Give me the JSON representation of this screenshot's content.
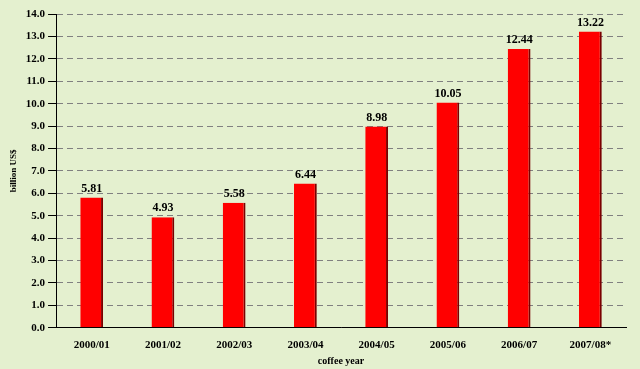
{
  "chart_data": {
    "type": "bar",
    "x_label": "coffee year",
    "y_label": "billion US$",
    "categories": [
      "2000/01",
      "2001/02",
      "2002/03",
      "2003/04",
      "2004/05",
      "2005/06",
      "2006/07",
      "2007/08*"
    ],
    "values": [
      5.81,
      4.93,
      5.58,
      6.44,
      8.98,
      10.05,
      12.44,
      13.22
    ],
    "color": "#ff0000",
    "ylim": [
      0,
      14
    ],
    "yticks": [
      {
        "value": 0,
        "label": "0.0"
      },
      {
        "value": 1,
        "label": "1.0"
      },
      {
        "value": 2,
        "label": "2.0"
      },
      {
        "value": 3,
        "label": "3.0"
      },
      {
        "value": 4,
        "label": "4.0"
      },
      {
        "value": 5,
        "label": "5.0"
      },
      {
        "value": 6,
        "label": "6.0"
      },
      {
        "value": 7,
        "label": "7.0"
      },
      {
        "value": 8,
        "label": "8.0"
      },
      {
        "value": 9,
        "label": "9.0"
      },
      {
        "value": 10,
        "label": "10.0"
      },
      {
        "value": 11,
        "label": "11.0"
      },
      {
        "value": 12,
        "label": "12.0"
      },
      {
        "value": 13,
        "label": "13.0"
      },
      {
        "value": 14,
        "label": "14.0"
      }
    ],
    "grid": true,
    "data_labels": true
  }
}
